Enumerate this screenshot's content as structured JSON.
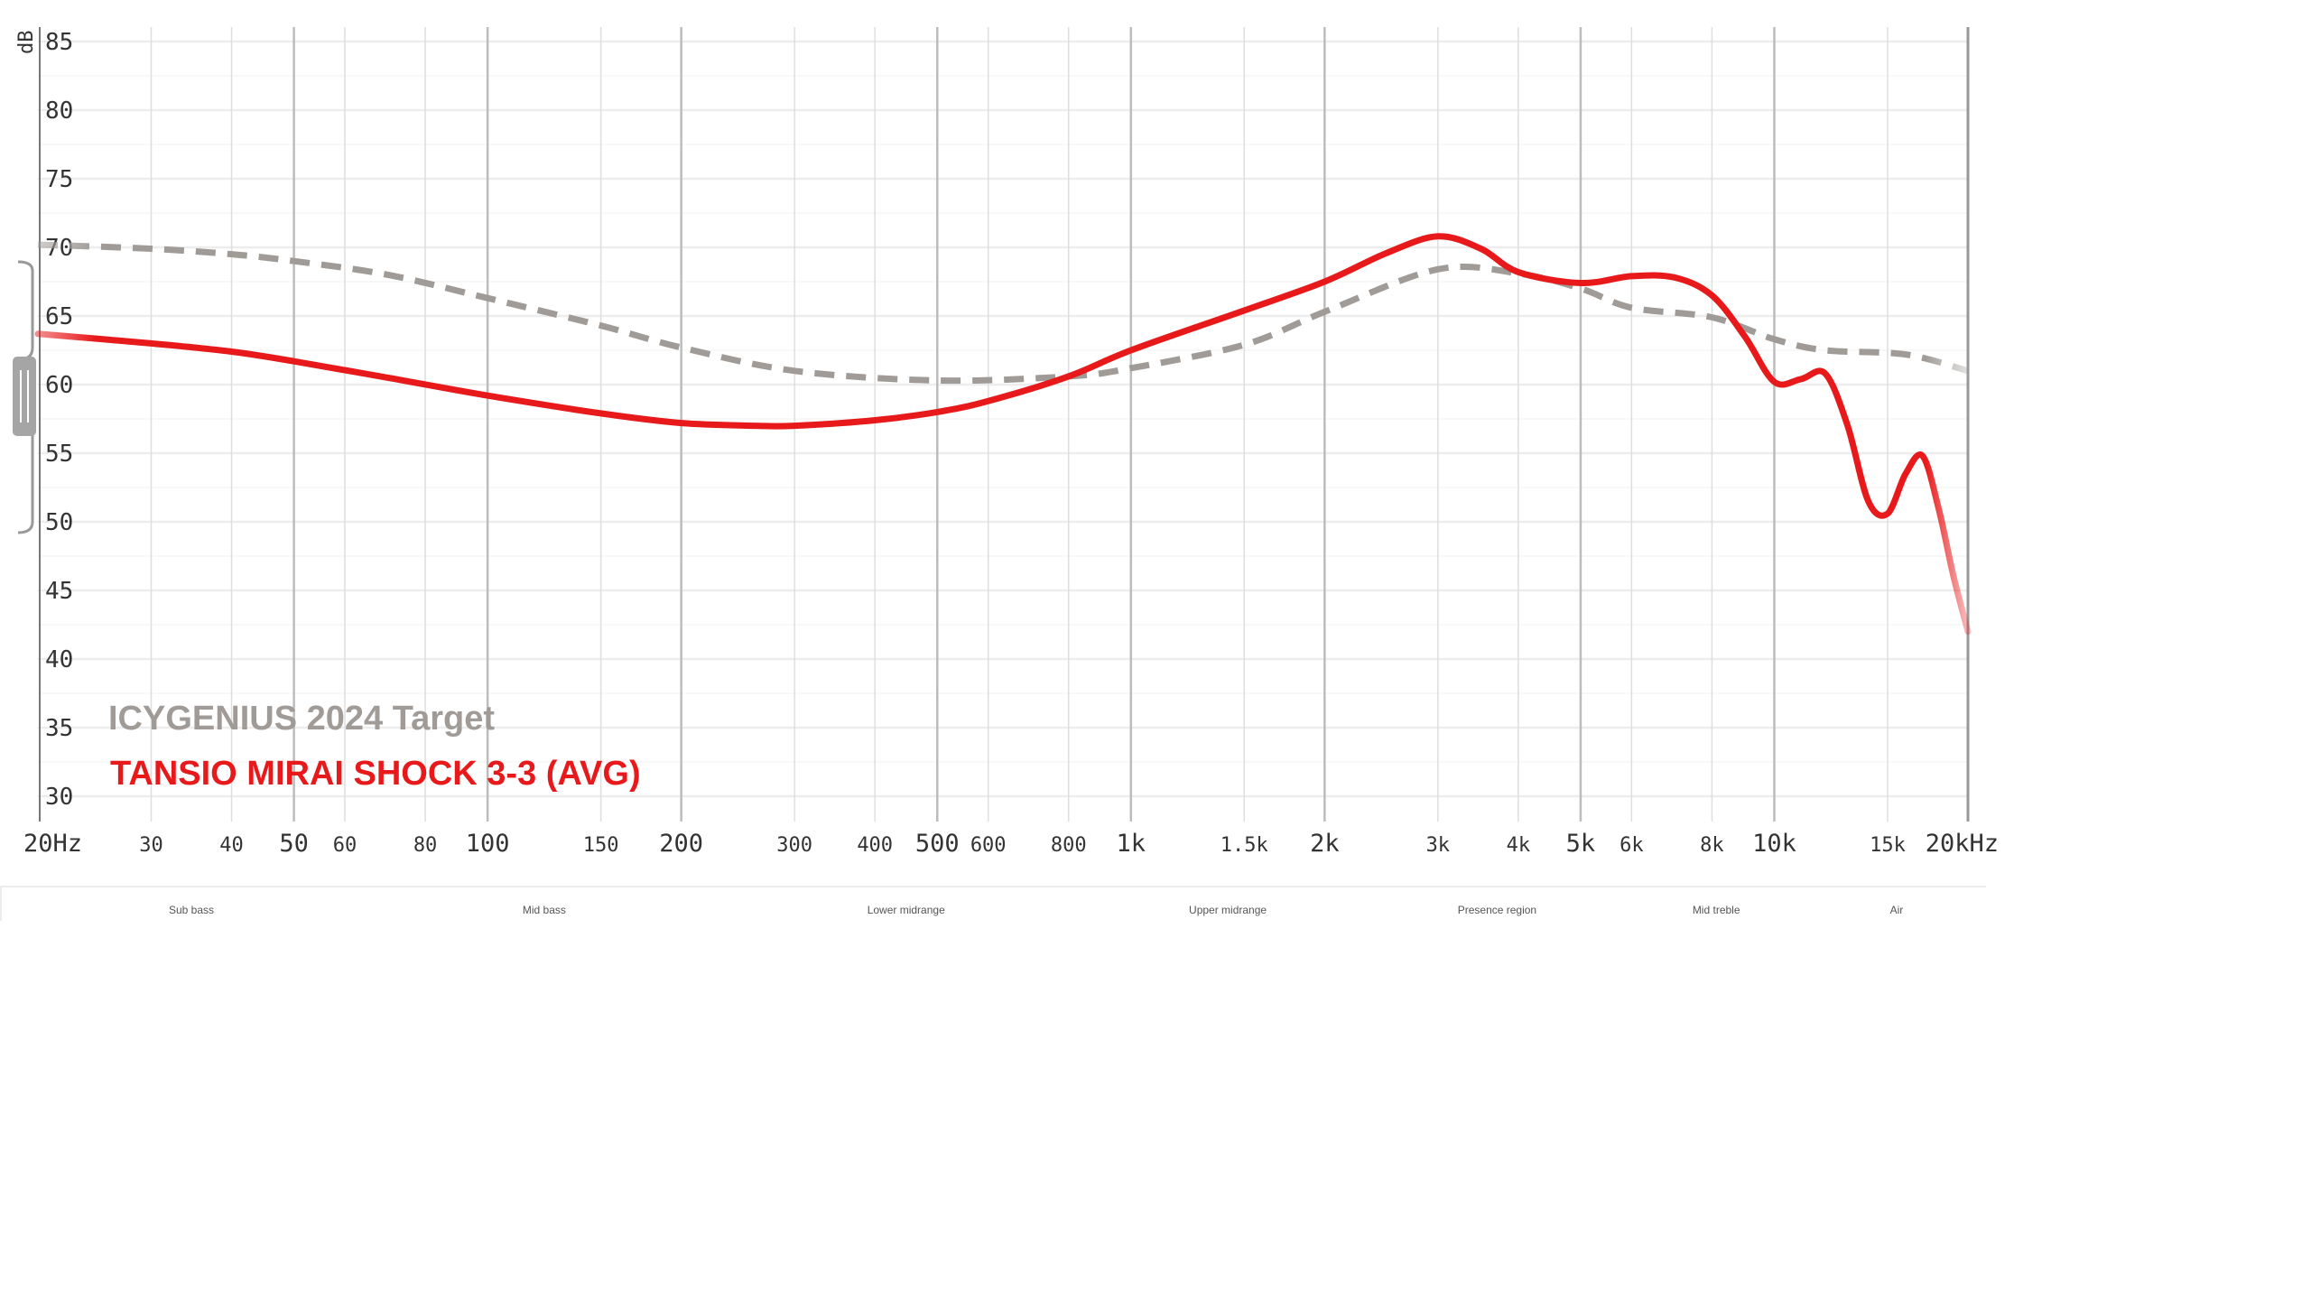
{
  "chart_data": {
    "type": "line",
    "xscale": "log",
    "xlim": [
      20,
      20000
    ],
    "ylim": [
      30,
      85
    ],
    "ylabel": "dB",
    "y_ticks": [
      "30",
      "35",
      "40",
      "45",
      "50",
      "55",
      "60",
      "65",
      "70",
      "75",
      "80",
      "85"
    ],
    "x_ticks": [
      {
        "value": 20,
        "label": "20Hz",
        "major": true
      },
      {
        "value": 30,
        "label": "30",
        "major": false
      },
      {
        "value": 40,
        "label": "40",
        "major": false
      },
      {
        "value": 50,
        "label": "50",
        "major": true
      },
      {
        "value": 60,
        "label": "60",
        "major": false
      },
      {
        "value": 80,
        "label": "80",
        "major": false
      },
      {
        "value": 100,
        "label": "100",
        "major": true
      },
      {
        "value": 150,
        "label": "150",
        "major": false
      },
      {
        "value": 200,
        "label": "200",
        "major": true
      },
      {
        "value": 300,
        "label": "300",
        "major": false
      },
      {
        "value": 400,
        "label": "400",
        "major": false
      },
      {
        "value": 500,
        "label": "500",
        "major": true
      },
      {
        "value": 600,
        "label": "600",
        "major": false
      },
      {
        "value": 800,
        "label": "800",
        "major": false
      },
      {
        "value": 1000,
        "label": "1k",
        "major": true
      },
      {
        "value": 1500,
        "label": "1.5k",
        "major": false
      },
      {
        "value": 2000,
        "label": "2k",
        "major": true
      },
      {
        "value": 3000,
        "label": "3k",
        "major": false
      },
      {
        "value": 4000,
        "label": "4k",
        "major": false
      },
      {
        "value": 5000,
        "label": "5k",
        "major": true
      },
      {
        "value": 6000,
        "label": "6k",
        "major": false
      },
      {
        "value": 8000,
        "label": "8k",
        "major": false
      },
      {
        "value": 10000,
        "label": "10k",
        "major": true
      },
      {
        "value": 15000,
        "label": "15k",
        "major": false
      },
      {
        "value": 20000,
        "label": "20kHz",
        "major": true
      }
    ],
    "regions": [
      {
        "label": "Sub bass",
        "from": 20,
        "to": 60
      },
      {
        "label": "Mid bass",
        "from": 60,
        "to": 250
      },
      {
        "label": "Lower midrange",
        "from": 250,
        "to": 800
      },
      {
        "label": "Upper midrange",
        "from": 800,
        "to": 2500
      },
      {
        "label": "Presence region",
        "from": 2500,
        "to": 5500
      },
      {
        "label": "Mid treble",
        "from": 5500,
        "to": 12000
      },
      {
        "label": "Air",
        "from": 12000,
        "to": 20000
      }
    ],
    "series": [
      {
        "name": "ICYGENIUS 2024 Target",
        "color": "#a09b96",
        "dashed": true,
        "x": [
          20,
          30,
          40,
          50,
          70,
          100,
          150,
          200,
          300,
          500,
          800,
          1000,
          1500,
          2000,
          3000,
          4000,
          5000,
          6000,
          8000,
          10000,
          12000,
          16000,
          20000
        ],
        "y": [
          70.2,
          69.9,
          69.5,
          69.0,
          68.0,
          66.3,
          64.3,
          62.7,
          61.0,
          60.3,
          60.6,
          61.2,
          62.9,
          65.3,
          68.4,
          68.1,
          67.0,
          65.6,
          64.9,
          63.3,
          62.5,
          62.2,
          61.0
        ]
      },
      {
        "name": "TANSIO MIRAI SHOCK 3-3 (AVG)",
        "color": "#e8191a",
        "dashed": false,
        "x": [
          20,
          30,
          40,
          50,
          70,
          100,
          150,
          200,
          260,
          300,
          400,
          500,
          600,
          800,
          1000,
          1500,
          2000,
          2500,
          3000,
          3500,
          4000,
          5000,
          6000,
          7000,
          8000,
          9000,
          10000,
          11000,
          12000,
          13000,
          14000,
          15000,
          16000,
          17000,
          18000,
          19000,
          20000
        ],
        "y": [
          63.7,
          63.0,
          62.4,
          61.7,
          60.5,
          59.2,
          57.9,
          57.2,
          57.0,
          57.0,
          57.4,
          58.0,
          58.8,
          60.6,
          62.5,
          65.4,
          67.5,
          69.6,
          70.8,
          69.9,
          68.2,
          67.4,
          67.9,
          67.8,
          66.5,
          63.5,
          60.2,
          60.4,
          60.8,
          57.0,
          51.5,
          50.6,
          53.5,
          54.8,
          51.0,
          46.0,
          42.0
        ]
      }
    ]
  }
}
